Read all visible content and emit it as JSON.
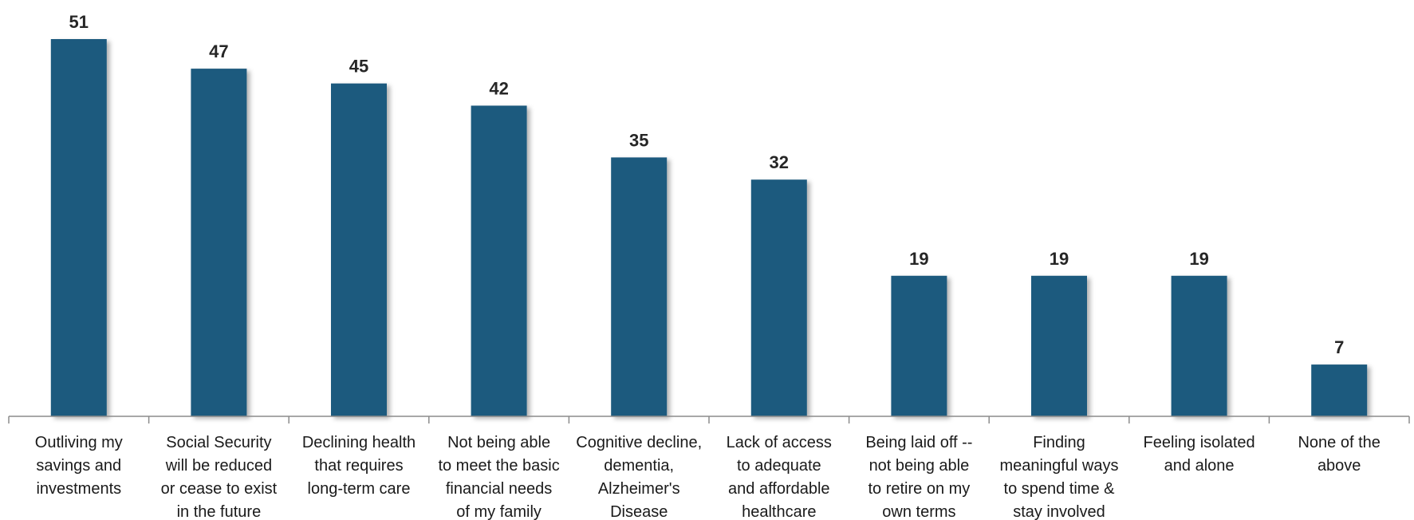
{
  "chart_data": {
    "type": "bar",
    "title": "",
    "xlabel": "",
    "ylabel": "",
    "ylim": [
      0,
      51
    ],
    "grid": false,
    "legend": "none",
    "bar_color": "#1f5a7e",
    "categories": [
      [
        "Outliving my",
        "savings and",
        "investments"
      ],
      [
        "Social Security",
        "will be reduced",
        "or cease to exist",
        "in the future"
      ],
      [
        "Declining health",
        "that requires",
        "long-term care"
      ],
      [
        "Not being able",
        "to meet the basic",
        "financial needs",
        "of my family"
      ],
      [
        "Cognitive decline,",
        "dementia,",
        "Alzheimer's",
        "Disease"
      ],
      [
        "Lack of access",
        "to adequate",
        "and affordable",
        "healthcare"
      ],
      [
        "Being laid off --",
        "not being able",
        "to retire on my",
        "own terms"
      ],
      [
        "Finding",
        "meaningful ways",
        "to spend time &",
        "stay involved"
      ],
      [
        "Feeling isolated",
        "and alone"
      ],
      [
        "None of the",
        "above"
      ]
    ],
    "values": [
      51,
      47,
      45,
      42,
      35,
      32,
      19,
      19,
      19,
      7
    ]
  }
}
